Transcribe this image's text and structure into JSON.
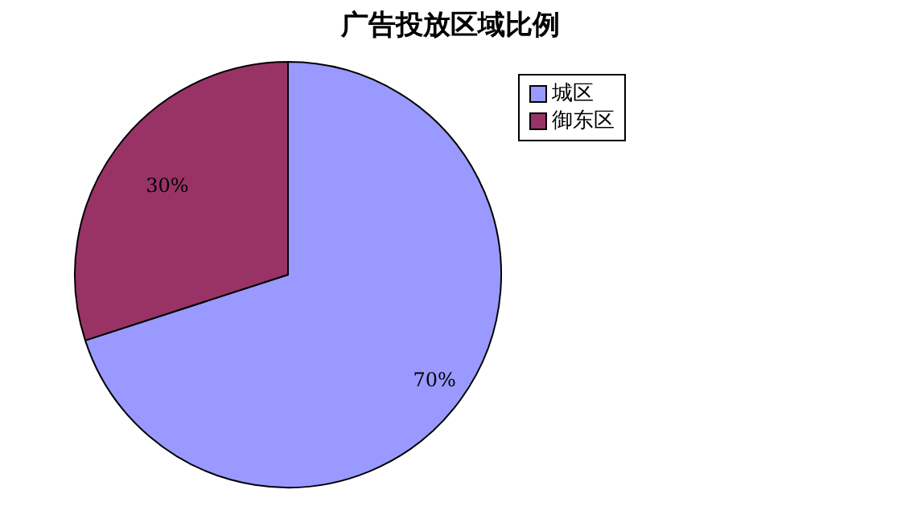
{
  "chart_data": {
    "type": "pie",
    "title": "广告投放区域比例",
    "categories": [
      "城区",
      "御东区"
    ],
    "values": [
      70,
      30
    ],
    "colors": [
      "#9999ff",
      "#993366"
    ],
    "value_labels": [
      "70%",
      "30%"
    ],
    "legend": "top right"
  }
}
